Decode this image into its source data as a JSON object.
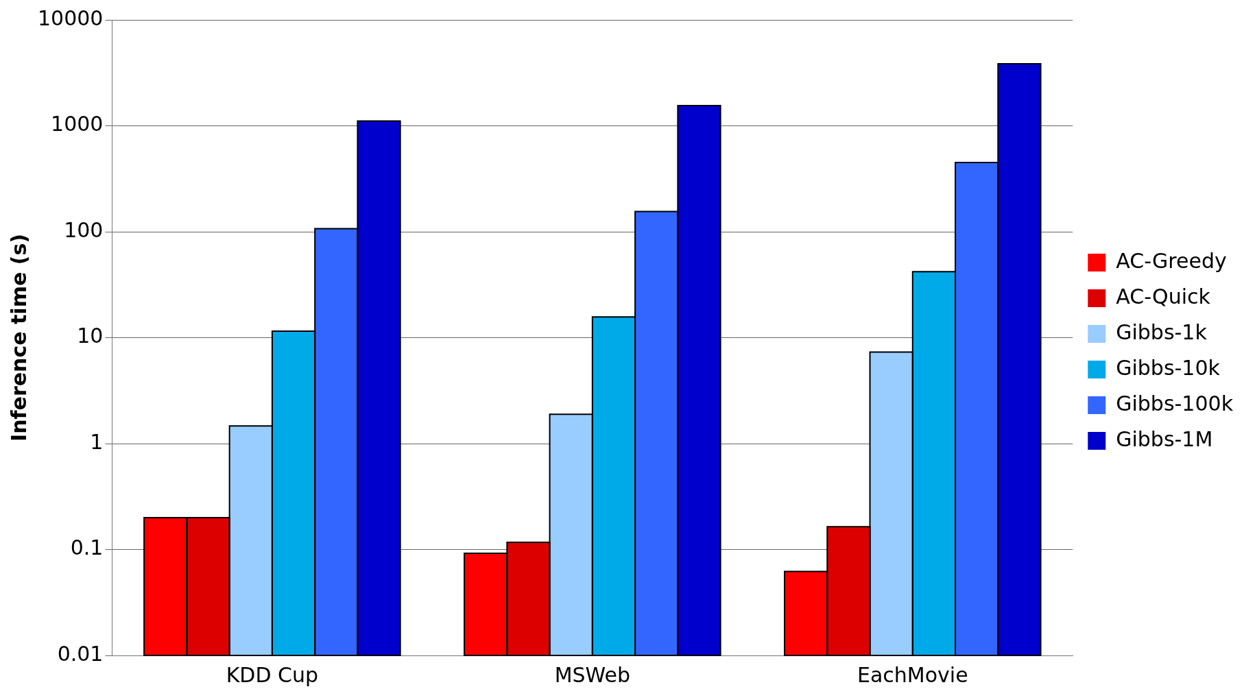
{
  "chart_data": {
    "type": "bar",
    "ylabel": "Inference time (s)",
    "categories": [
      "KDD Cup",
      "MSWeb",
      "EachMovie"
    ],
    "series": [
      {
        "name": "AC-Greedy",
        "color": "#ff0000",
        "values": [
          0.2,
          0.092,
          0.062
        ]
      },
      {
        "name": "AC-Quick",
        "color": "#dd0000",
        "values": [
          0.2,
          0.117,
          0.164
        ]
      },
      {
        "name": "Gibbs-1k",
        "color": "#99ccff",
        "values": [
          1.47,
          1.89,
          7.3
        ]
      },
      {
        "name": "Gibbs-10k",
        "color": "#00aae8",
        "values": [
          11.5,
          15.7,
          42
        ]
      },
      {
        "name": "Gibbs-100k",
        "color": "#3366ff",
        "values": [
          107,
          155,
          450
        ]
      },
      {
        "name": "Gibbs-1M",
        "color": "#0000cc",
        "values": [
          1110,
          1550,
          3850
        ]
      }
    ],
    "log": "y",
    "ylim": [
      0.01,
      10000
    ],
    "yticks": [
      0.01,
      0.1,
      1,
      10,
      100,
      1000,
      10000
    ],
    "grid": "y",
    "legend": "right"
  }
}
